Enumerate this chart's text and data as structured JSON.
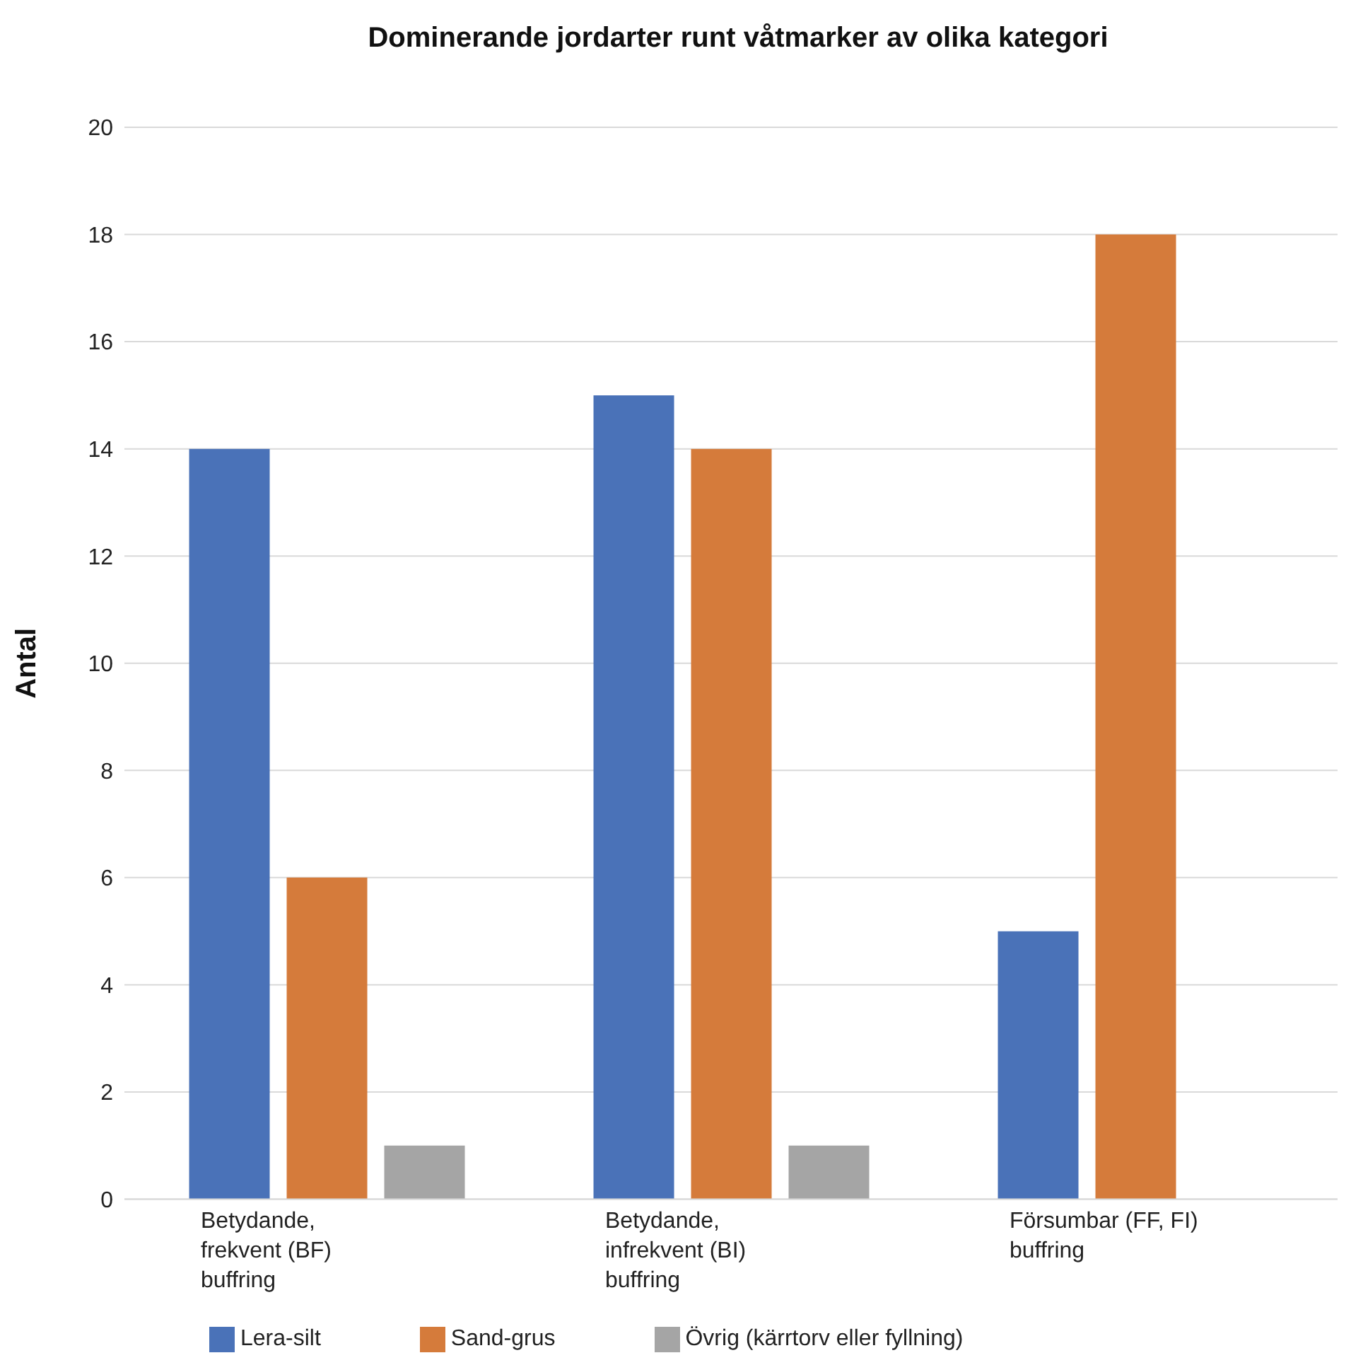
{
  "chart_data": {
    "type": "bar",
    "title": "Dominerande jordarter runt våtmarker av olika kategori",
    "ylabel": "Antal",
    "categories": [
      "Betydande, frekvent (BF) buffring",
      "Betydande, infrekvent (BI) buffring",
      "Försumbar (FF, FI) buffring"
    ],
    "series": [
      {
        "name": "Lera-silt",
        "color": "#4a72b8",
        "values": [
          14,
          15,
          5
        ]
      },
      {
        "name": "Sand-grus",
        "color": "#d57b3b",
        "values": [
          6,
          14,
          18
        ]
      },
      {
        "name": "Övrig (kärrtorv eller fyllning)",
        "color": "#a5a5a5",
        "values": [
          1,
          1,
          0
        ]
      }
    ],
    "ylim": [
      0,
      20
    ],
    "yticks": [
      0,
      2,
      4,
      6,
      8,
      10,
      12,
      14,
      16,
      18,
      20
    ],
    "grid": "y",
    "legend": "bottom"
  }
}
